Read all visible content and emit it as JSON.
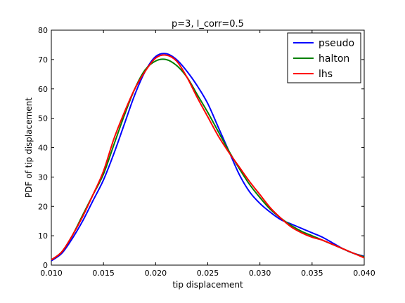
{
  "chart_data": {
    "type": "line",
    "title": "p=3, l_corr=0.5",
    "xlabel": "tip displacement",
    "ylabel": "PDF of tip displacement",
    "xlim": [
      0.01,
      0.04
    ],
    "ylim": [
      0,
      80
    ],
    "xticks": [
      "0.010",
      "0.015",
      "0.020",
      "0.025",
      "0.030",
      "0.035",
      "0.040"
    ],
    "yticks": [
      "0",
      "10",
      "20",
      "30",
      "40",
      "50",
      "60",
      "70",
      "80"
    ],
    "grid": false,
    "legend_position": "top-right",
    "series": [
      {
        "name": "pseudo",
        "color": "#0000ff",
        "x": [
          0.01,
          0.011,
          0.012,
          0.013,
          0.014,
          0.015,
          0.016,
          0.017,
          0.018,
          0.019,
          0.02,
          0.021,
          0.022,
          0.023,
          0.024,
          0.025,
          0.026,
          0.027,
          0.028,
          0.029,
          0.03,
          0.031,
          0.032,
          0.033,
          0.034,
          0.035,
          0.036,
          0.037,
          0.038,
          0.039,
          0.04
        ],
        "y": [
          1.5,
          4,
          9,
          15,
          22,
          29,
          38,
          48,
          58,
          66,
          71,
          72,
          70,
          66,
          61,
          55,
          47,
          39,
          31,
          25,
          21,
          18,
          15.5,
          14,
          12.5,
          11,
          9.5,
          7.5,
          5.5,
          4,
          3
        ]
      },
      {
        "name": "halton",
        "color": "#008000",
        "x": [
          0.01,
          0.011,
          0.012,
          0.013,
          0.014,
          0.015,
          0.016,
          0.017,
          0.018,
          0.019,
          0.02,
          0.021,
          0.022,
          0.023,
          0.024,
          0.025,
          0.026,
          0.027,
          0.028,
          0.029,
          0.03,
          0.031,
          0.032,
          0.033,
          0.034,
          0.035,
          0.036,
          0.037,
          0.038,
          0.039,
          0.04
        ],
        "y": [
          1.8,
          4.5,
          10,
          17,
          24,
          31,
          41,
          51,
          60,
          66.5,
          69.5,
          70,
          68,
          64,
          58,
          52,
          45.5,
          39,
          33,
          27.5,
          23,
          19,
          16,
          13.5,
          11.5,
          10,
          8.5,
          7,
          5.5,
          4,
          2.8
        ]
      },
      {
        "name": "lhs",
        "color": "#ff0000",
        "x": [
          0.01,
          0.011,
          0.012,
          0.013,
          0.014,
          0.015,
          0.016,
          0.017,
          0.018,
          0.019,
          0.02,
          0.021,
          0.022,
          0.023,
          0.024,
          0.025,
          0.026,
          0.027,
          0.028,
          0.029,
          0.03,
          0.031,
          0.032,
          0.033,
          0.034,
          0.035,
          0.036,
          0.037,
          0.038,
          0.039,
          0.04
        ],
        "y": [
          1.8,
          4.5,
          10,
          16.5,
          24,
          32,
          43,
          52,
          60,
          66,
          70.5,
          71.5,
          69.5,
          64,
          57,
          50.5,
          44,
          38.5,
          33.5,
          28.5,
          24,
          19.5,
          16,
          13,
          11,
          9.5,
          8.5,
          7,
          5.5,
          4,
          2.5
        ]
      }
    ]
  }
}
